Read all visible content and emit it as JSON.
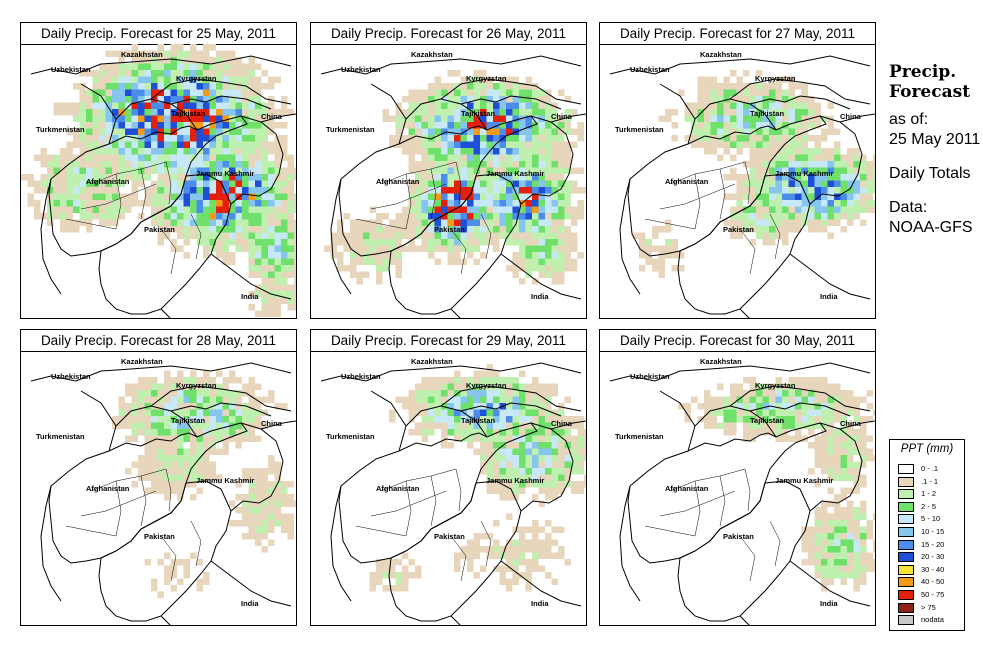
{
  "panels": [
    {
      "title": "Daily Precip. Forecast for  25 May, 2011",
      "pattern": "p1"
    },
    {
      "title": "Daily Precip. Forecast for  26 May, 2011",
      "pattern": "p2"
    },
    {
      "title": "Daily Precip. Forecast for  27 May, 2011",
      "pattern": "p3"
    },
    {
      "title": "Daily Precip. Forecast for  28 May, 2011",
      "pattern": "p4"
    },
    {
      "title": "Daily Precip. Forecast for  29 May, 2011",
      "pattern": "p5"
    },
    {
      "title": "Daily Precip. Forecast for  30 May, 2011",
      "pattern": "p6"
    }
  ],
  "map_labels": [
    "Kazakhstan",
    "Uzbekistan",
    "Kyrgyzstan",
    "Tajikistan",
    "China",
    "Turkmenistan",
    "Afghanistan",
    "Jammu Kashmir",
    "Pakistan",
    "India"
  ],
  "side": {
    "title": "Precip. Forecast",
    "as_of": "as of:",
    "date": "25 May 2011",
    "totals": "Daily Totals",
    "data": "Data: NOAA-GFS"
  },
  "legend": {
    "title": "PPT (mm)",
    "items": [
      {
        "label": "0 - .1",
        "color": "#ffffff"
      },
      {
        "label": ".1 - 1",
        "color": "#e8d6bc"
      },
      {
        "label": "1 - 2",
        "color": "#bff0b0"
      },
      {
        "label": "2 - 5",
        "color": "#6fe06a"
      },
      {
        "label": "5 - 10",
        "color": "#c7e8f6"
      },
      {
        "label": "10 - 15",
        "color": "#86c6ee"
      },
      {
        "label": "15 - 20",
        "color": "#4b8de8"
      },
      {
        "label": "20 - 30",
        "color": "#1f4fd6"
      },
      {
        "label": "30 - 40",
        "color": "#f2e23a"
      },
      {
        "label": "40 - 50",
        "color": "#f29a1a"
      },
      {
        "label": "50 - 75",
        "color": "#e4200c"
      },
      {
        "label": "> 75",
        "color": "#8b2316"
      },
      {
        "label": "nodata",
        "color": "#c8c8c8"
      }
    ]
  }
}
